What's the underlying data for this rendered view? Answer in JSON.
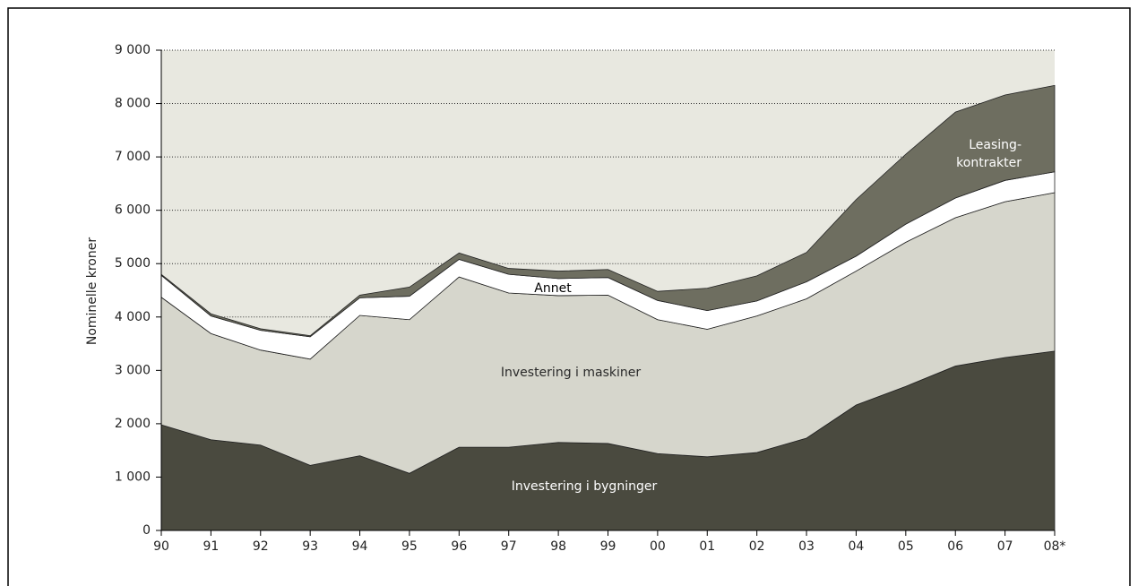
{
  "chart_data": {
    "type": "stacked-area",
    "y_label": "Nominelle kroner",
    "categories": [
      "90",
      "91",
      "92",
      "93",
      "94",
      "95",
      "96",
      "97",
      "98",
      "99",
      "00",
      "01",
      "02",
      "03",
      "04",
      "05",
      "06",
      "07",
      "08*"
    ],
    "series": [
      {
        "name": "Investering i bygninger",
        "color": "#4a4a3f",
        "label_color": "#ffffff",
        "values": [
          1980,
          1700,
          1600,
          1220,
          1400,
          1070,
          1560,
          1560,
          1650,
          1630,
          1440,
          1380,
          1460,
          1730,
          2350,
          2700,
          3080,
          3240,
          3360
        ]
      },
      {
        "name": "Investering i maskiner",
        "color": "#d6d6cc",
        "label_color": "#2a2a2a",
        "values": [
          2390,
          1990,
          1780,
          1990,
          2630,
          2880,
          3190,
          2890,
          2750,
          2780,
          2510,
          2390,
          2560,
          2610,
          2510,
          2700,
          2780,
          2920,
          2970
        ]
      },
      {
        "name": "Annet",
        "color": "#ffffff",
        "label_color": "#000000",
        "values": [
          410,
          330,
          370,
          420,
          330,
          440,
          330,
          350,
          320,
          330,
          360,
          350,
          280,
          320,
          280,
          340,
          370,
          400,
          390
        ]
      },
      {
        "name": "Leasing-kontrakter",
        "color": "#6e6e60",
        "label_color": "#ffffff",
        "values": [
          20,
          40,
          30,
          20,
          50,
          170,
          120,
          110,
          140,
          150,
          170,
          420,
          470,
          550,
          1060,
          1310,
          1610,
          1600,
          1620
        ]
      }
    ],
    "ylim": [
      0,
      9000
    ],
    "yticks": [
      0,
      {
        "value": 1000,
        "label": "1 000"
      },
      {
        "value": 2000,
        "label": "2 000"
      },
      {
        "value": 3000,
        "label": "3 000"
      },
      {
        "value": 4000,
        "label": "4 000"
      },
      {
        "value": 5000,
        "label": "5 000"
      },
      {
        "value": 6000,
        "label": "6 000"
      },
      {
        "value": 7000,
        "label": "7 000"
      },
      {
        "value": 8000,
        "label": "8 000"
      },
      {
        "value": 9000,
        "label": "9 000"
      }
    ],
    "grid": true
  }
}
